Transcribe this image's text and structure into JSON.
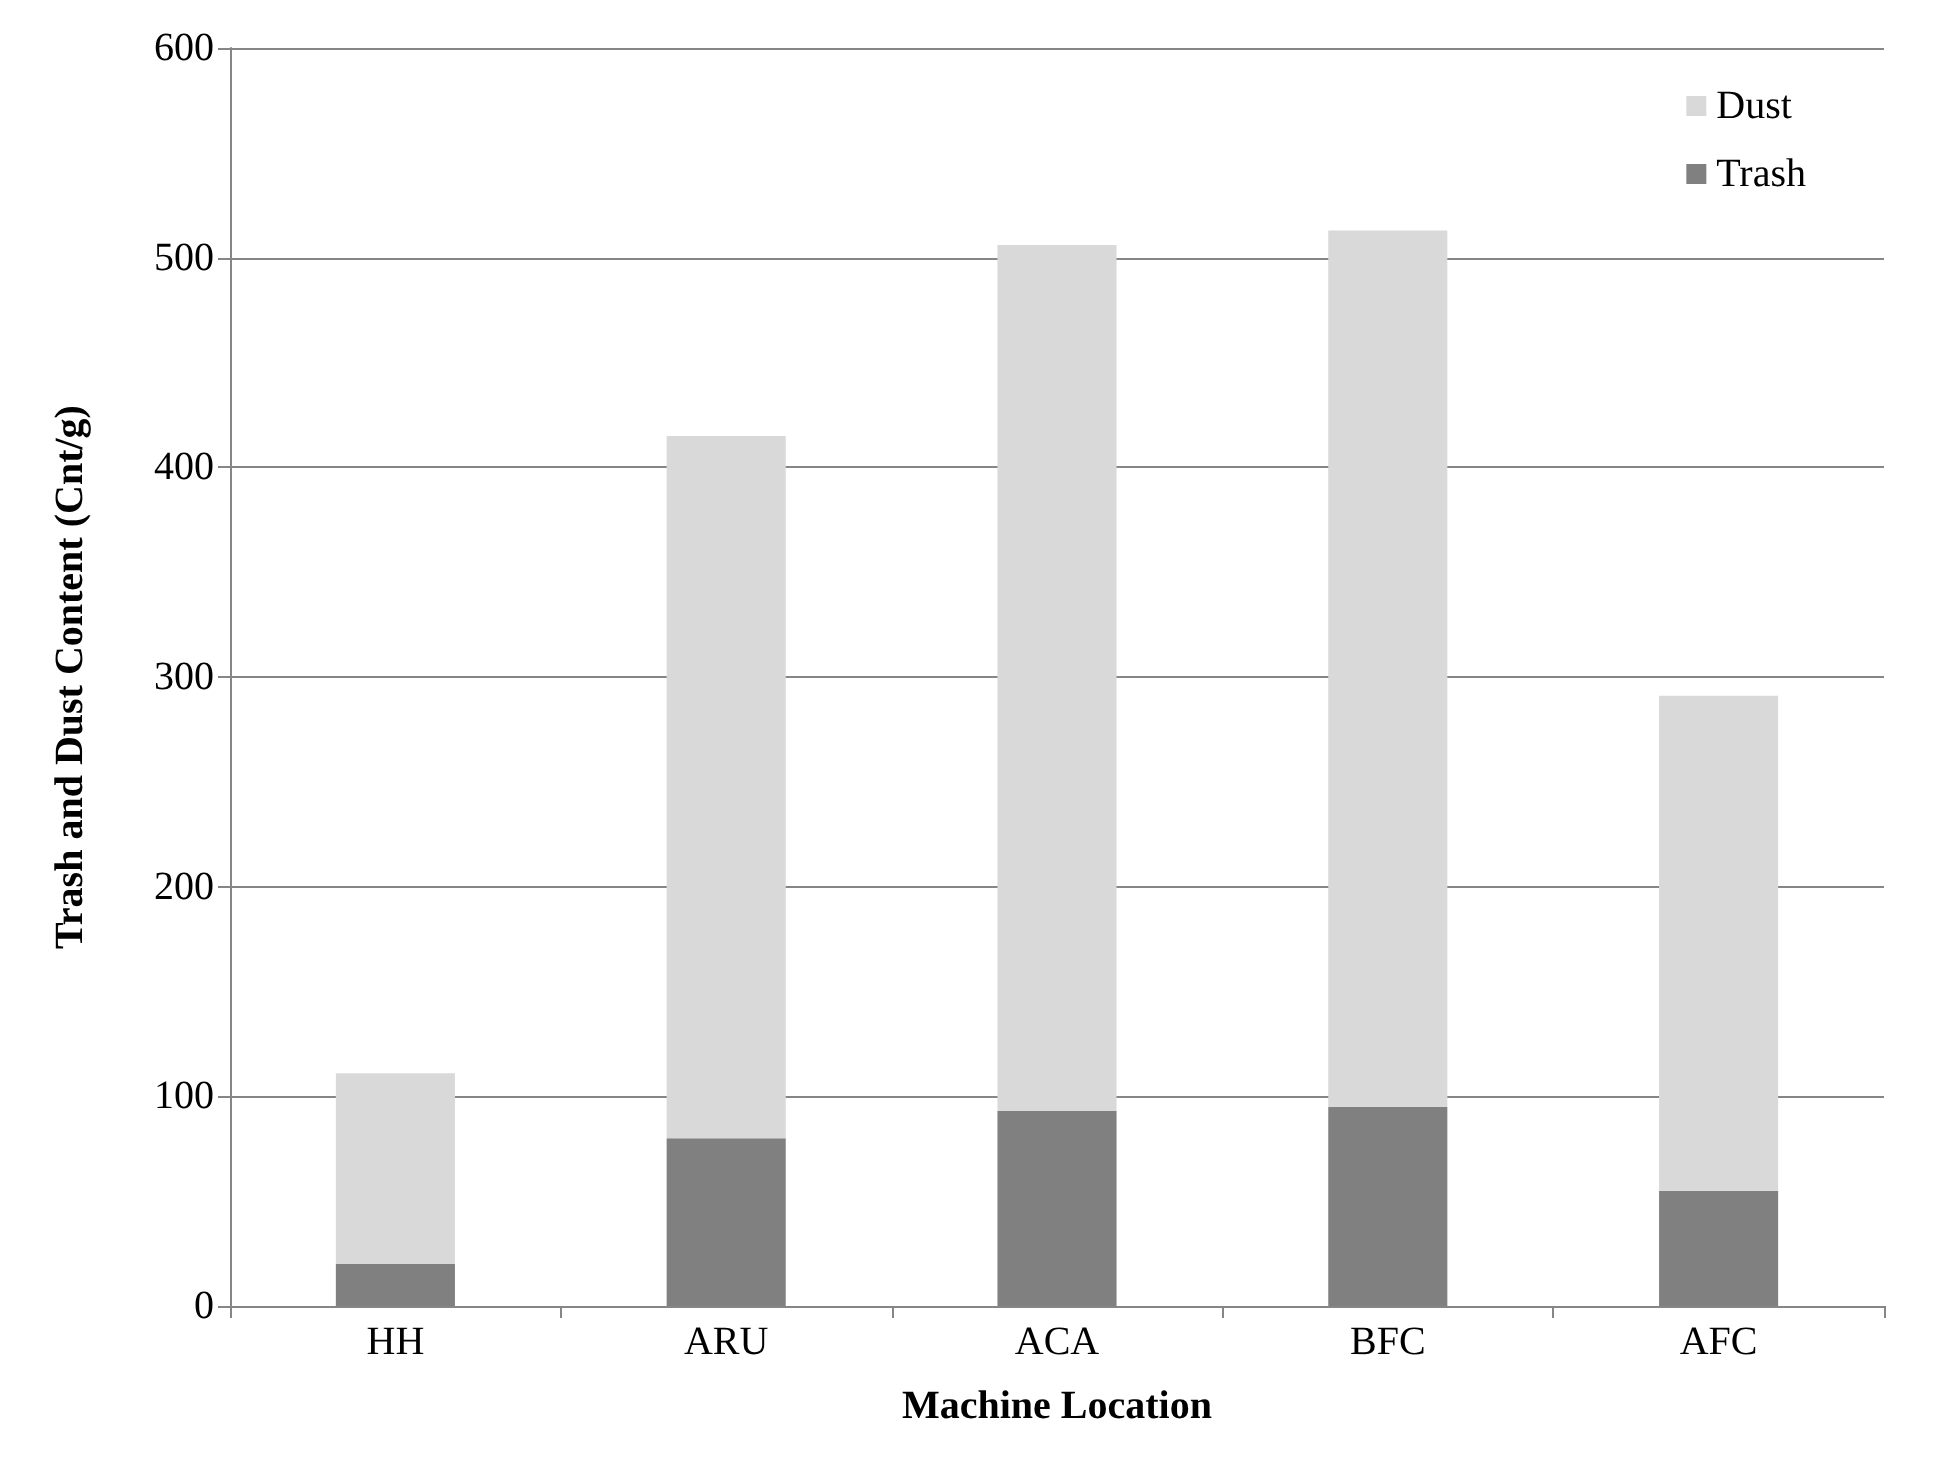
{
  "chart_data": {
    "type": "bar",
    "stacked": true,
    "xlabel": "Machine Location",
    "ylabel": "Trash and Dust Content (Cnt/g)",
    "categories": [
      "HH",
      "ARU",
      "ACA",
      "BFC",
      "AFC"
    ],
    "series": [
      {
        "name": "Trash",
        "color": "#808080",
        "values": [
          20,
          80,
          93,
          95,
          55
        ]
      },
      {
        "name": "Dust",
        "color": "#d9d9d9",
        "values": [
          91,
          335,
          413,
          418,
          236
        ]
      }
    ],
    "ylim": [
      0,
      600
    ],
    "yticks": [
      0,
      100,
      200,
      300,
      400,
      500,
      600
    ],
    "grid": "y",
    "legend": "top right"
  }
}
